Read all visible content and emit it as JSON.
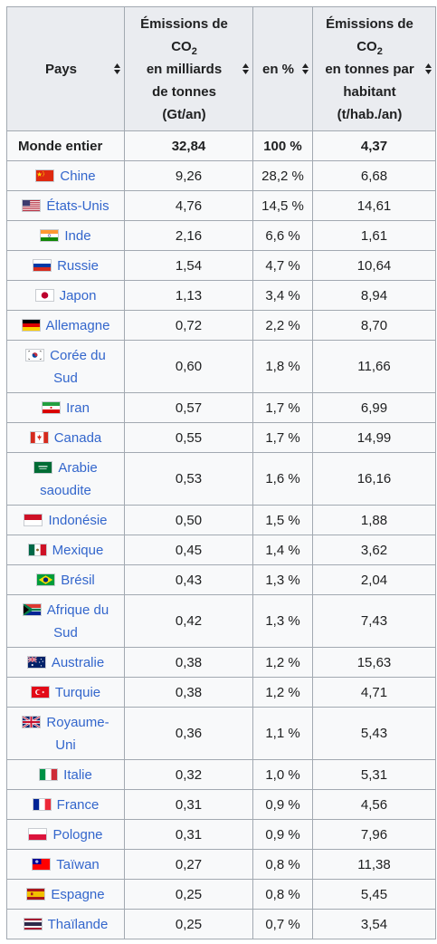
{
  "headers": {
    "country": "Pays",
    "emissions_line1": "Émissions de",
    "emissions_co": "CO",
    "emissions_sub": "2",
    "emissions_line3": "en milliards",
    "emissions_line4": "de tonnes",
    "emissions_line5": "(Gt/an)",
    "percent": "en %",
    "percap_line1": "Émissions de",
    "percap_co": "CO",
    "percap_sub": "2",
    "percap_line3": "en tonnes par",
    "percap_line4": "habitant",
    "percap_line5": "(t/hab./an)"
  },
  "world": {
    "country": "Monde entier",
    "emissions": "32,84",
    "percent": "100 %",
    "per_capita": "4,37"
  },
  "rows": [
    {
      "country": "Chine",
      "flag": "china",
      "emissions": "9,26",
      "percent": "28,2 %",
      "per_capita": "6,68"
    },
    {
      "country": "États-Unis",
      "flag": "usa",
      "emissions": "4,76",
      "percent": "14,5 %",
      "per_capita": "14,61"
    },
    {
      "country": "Inde",
      "flag": "india",
      "emissions": "2,16",
      "percent": "6,6 %",
      "per_capita": "1,61"
    },
    {
      "country": "Russie",
      "flag": "russia",
      "emissions": "1,54",
      "percent": "4,7 %",
      "per_capita": "10,64"
    },
    {
      "country": "Japon",
      "flag": "japan",
      "emissions": "1,13",
      "percent": "3,4 %",
      "per_capita": "8,94"
    },
    {
      "country": "Allemagne",
      "flag": "germany",
      "emissions": "0,72",
      "percent": "2,2 %",
      "per_capita": "8,70"
    },
    {
      "country": "Corée du Sud",
      "flag": "south-korea",
      "emissions": "0,60",
      "percent": "1,8 %",
      "per_capita": "11,66"
    },
    {
      "country": "Iran",
      "flag": "iran",
      "emissions": "0,57",
      "percent": "1,7 %",
      "per_capita": "6,99"
    },
    {
      "country": "Canada",
      "flag": "canada",
      "emissions": "0,55",
      "percent": "1,7 %",
      "per_capita": "14,99"
    },
    {
      "country": "Arabie saoudite",
      "flag": "saudi-arabia",
      "emissions": "0,53",
      "percent": "1,6 %",
      "per_capita": "16,16"
    },
    {
      "country": "Indonésie",
      "flag": "indonesia",
      "emissions": "0,50",
      "percent": "1,5 %",
      "per_capita": "1,88"
    },
    {
      "country": "Mexique",
      "flag": "mexico",
      "emissions": "0,45",
      "percent": "1,4 %",
      "per_capita": "3,62"
    },
    {
      "country": "Brésil",
      "flag": "brazil",
      "emissions": "0,43",
      "percent": "1,3 %",
      "per_capita": "2,04"
    },
    {
      "country": "Afrique du Sud",
      "flag": "south-africa",
      "emissions": "0,42",
      "percent": "1,3 %",
      "per_capita": "7,43"
    },
    {
      "country": "Australie",
      "flag": "australia",
      "emissions": "0,38",
      "percent": "1,2 %",
      "per_capita": "15,63"
    },
    {
      "country": "Turquie",
      "flag": "turkey",
      "emissions": "0,38",
      "percent": "1,2 %",
      "per_capita": "4,71"
    },
    {
      "country": "Royaume-Uni",
      "flag": "united-kingdom",
      "emissions": "0,36",
      "percent": "1,1 %",
      "per_capita": "5,43"
    },
    {
      "country": "Italie",
      "flag": "italy",
      "emissions": "0,32",
      "percent": "1,0 %",
      "per_capita": "5,31"
    },
    {
      "country": "France",
      "flag": "france",
      "emissions": "0,31",
      "percent": "0,9 %",
      "per_capita": "4,56"
    },
    {
      "country": "Pologne",
      "flag": "poland",
      "emissions": "0,31",
      "percent": "0,9 %",
      "per_capita": "7,96"
    },
    {
      "country": "Taïwan",
      "flag": "taiwan",
      "emissions": "0,27",
      "percent": "0,8 %",
      "per_capita": "11,38"
    },
    {
      "country": "Espagne",
      "flag": "spain",
      "emissions": "0,25",
      "percent": "0,8 %",
      "per_capita": "5,45"
    },
    {
      "country": "Thaïlande",
      "flag": "thailand",
      "emissions": "0,25",
      "percent": "0,7 %",
      "per_capita": "3,54"
    }
  ],
  "colors": {
    "link": "#3366cc",
    "header_bg": "#eaecf0",
    "row_bg": "#f8f9fa",
    "border": "#a2a9b1"
  }
}
